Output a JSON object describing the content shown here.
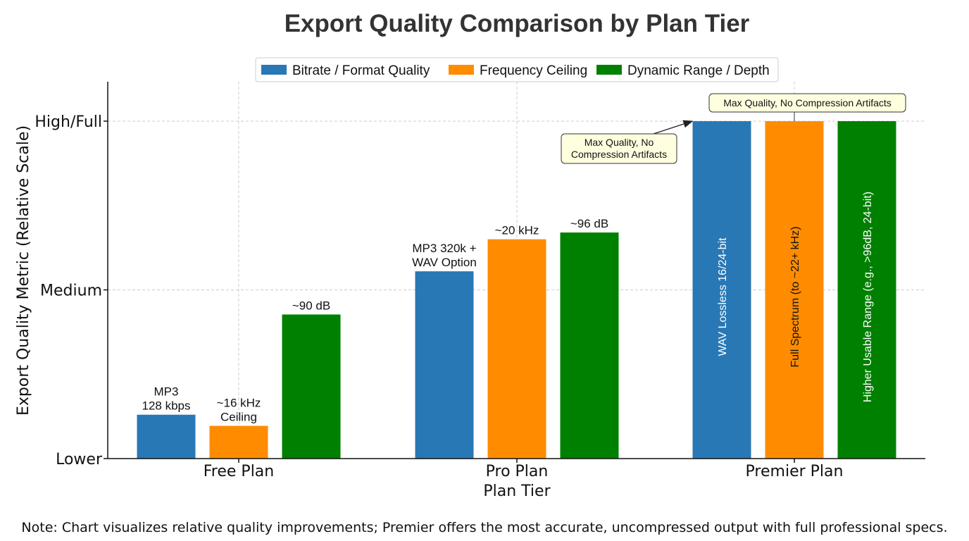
{
  "chart_data": {
    "type": "bar",
    "title": "Export Quality Comparison by Plan Tier",
    "xlabel": "Plan Tier",
    "ylabel": "Export Quality Metric (Relative Scale)",
    "categories": [
      "Free Plan",
      "Pro Plan",
      "Premier Plan"
    ],
    "y_ticks": [
      {
        "value": 0,
        "label": "Lower"
      },
      {
        "value": 50,
        "label": "Medium"
      },
      {
        "value": 100,
        "label": "High/Full"
      }
    ],
    "ylim": [
      0,
      112
    ],
    "grid": true,
    "legend_position": "top-center",
    "series": [
      {
        "name": "Bitrate / Format Quality",
        "color": "#2878b5",
        "values": [
          13,
          55.5,
          100
        ],
        "labels": [
          "MP3\n128 kbps",
          "MP3 320k +\nWAV Option",
          "WAV Lossless 16/24-bit"
        ],
        "label_inside": [
          false,
          false,
          true
        ],
        "inside_text_color": "#ffffff"
      },
      {
        "name": "Frequency Ceiling",
        "color": "#ff8c00",
        "values": [
          9.7,
          65,
          100
        ],
        "labels": [
          "~16 kHz\nCeiling",
          "~20 kHz",
          "Full Spectrum (to ~22+ kHz)"
        ],
        "label_inside": [
          false,
          false,
          true
        ],
        "inside_text_color": "#111111"
      },
      {
        "name": "Dynamic Range / Depth",
        "color": "#008000",
        "values": [
          42.7,
          67,
          100
        ],
        "labels": [
          "~90 dB",
          "~96 dB",
          "Higher Usable Range (e.g., >96dB, 24-bit)"
        ],
        "label_inside": [
          false,
          false,
          true
        ],
        "inside_text_color": "#ffffff"
      }
    ],
    "annotations": [
      {
        "text": "Max Quality, No Compression Artifacts",
        "lines": [
          "Max Quality, No Compression Artifacts"
        ],
        "target": "Premier Plan / Frequency Ceiling"
      },
      {
        "text": "Max Quality, No Compression Artifacts",
        "lines": [
          "Max Quality, No",
          "Compression Artifacts"
        ],
        "target": "Premier Plan / Bitrate / Format Quality",
        "arrow": true
      }
    ]
  },
  "note": "Note: Chart visualizes relative quality improvements; Premier offers the most accurate, uncompressed output with full professional specs."
}
